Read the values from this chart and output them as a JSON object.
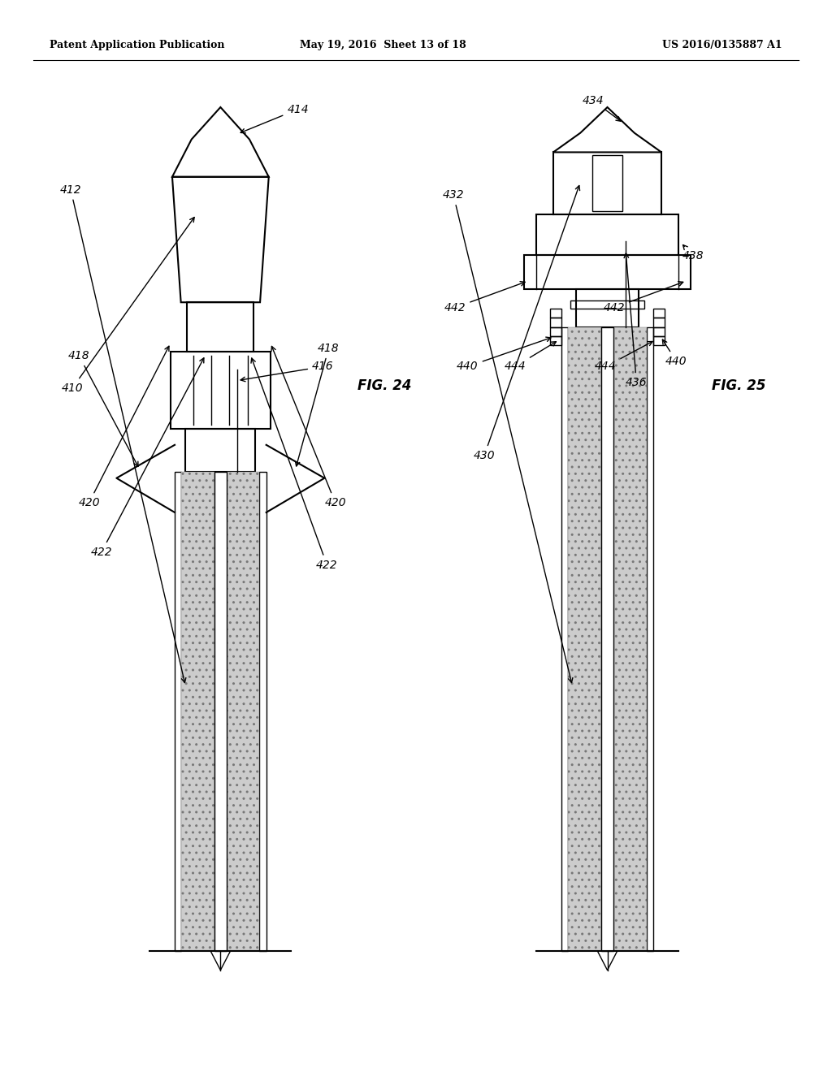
{
  "bg_color": "#ffffff",
  "line_color": "#000000",
  "header_left": "Patent Application Publication",
  "header_mid": "May 19, 2016  Sheet 13 of 18",
  "header_right": "US 2016/0135887 A1",
  "fig24_label": "FIG. 24",
  "fig25_label": "FIG. 25"
}
